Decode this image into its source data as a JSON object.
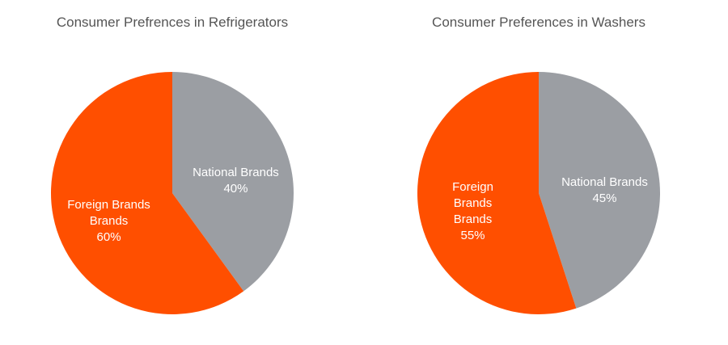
{
  "chart_data": [
    {
      "type": "pie",
      "title": "Consumer Prefrences in Refrigerators",
      "categories": [
        "National Brands",
        "Foreign Brands Brands"
      ],
      "values": [
        40,
        60
      ],
      "value_labels": [
        "40%",
        "60%"
      ],
      "colors": [
        "#9b9ea3",
        "#ff4f00"
      ]
    },
    {
      "type": "pie",
      "title": "Consumer Preferences in Washers",
      "categories": [
        "National Brands",
        "Foreign Brands Brands"
      ],
      "values": [
        45,
        55
      ],
      "value_labels": [
        "45%",
        "55%"
      ],
      "colors": [
        "#9b9ea3",
        "#ff4f00"
      ]
    }
  ]
}
